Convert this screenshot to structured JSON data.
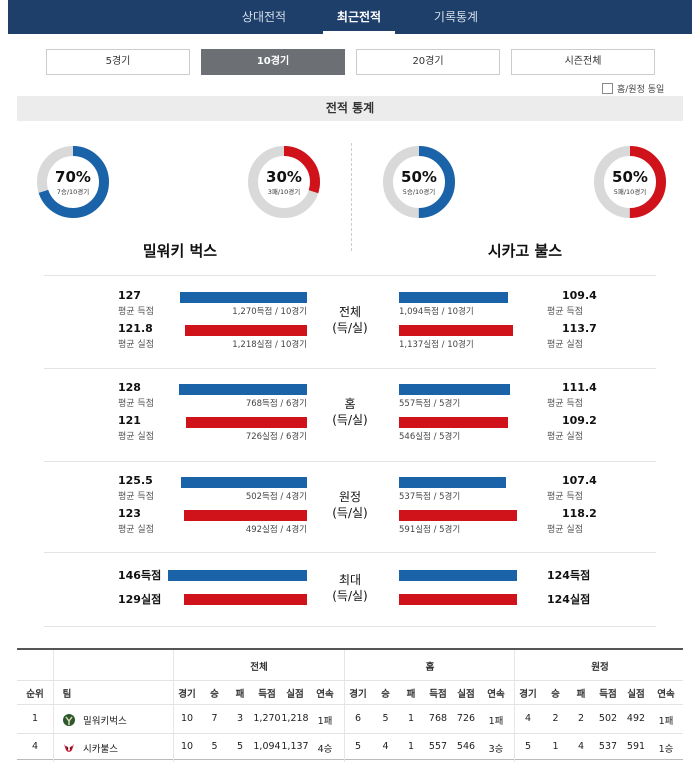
{
  "nav": {
    "tabs": [
      {
        "label": "상대전적",
        "active": false
      },
      {
        "label": "최근전적",
        "active": true
      },
      {
        "label": "기록통계",
        "active": false
      }
    ]
  },
  "ranges": [
    {
      "label": "5경기",
      "active": false
    },
    {
      "label": "10경기",
      "active": true
    },
    {
      "label": "20경기",
      "active": false
    },
    {
      "label": "시즌전체",
      "active": false
    }
  ],
  "same_home_away_label": "홈/원정 동일",
  "section_title": "전적 통계",
  "colors": {
    "home_blue": "#1a63a9",
    "away_red": "#d0121b",
    "nav_bg": "#1f3f6b"
  },
  "teams": {
    "home": {
      "name": "밀워키 벅스",
      "win": {
        "pct_text": "70%",
        "pct": 0.7,
        "sub": "7승/10경기"
      },
      "loss": {
        "pct_text": "30%",
        "pct": 0.3,
        "sub": "3패/10경기"
      }
    },
    "away": {
      "name": "시카고 불스",
      "win": {
        "pct_text": "50%",
        "pct": 0.5,
        "sub": "5승/10경기"
      },
      "loss": {
        "pct_text": "50%",
        "pct": 0.5,
        "sub": "5패/10경기"
      }
    }
  },
  "stat_blocks": [
    {
      "title": "전체",
      "subtitle": "(득/실)",
      "home": {
        "scored": {
          "value": "127",
          "label": "평균 득점",
          "note": "1,270득점 / 10경기",
          "num": 127
        },
        "allowed": {
          "value": "121.8",
          "label": "평균 실점",
          "note": "1,218실점 / 10경기",
          "num": 121.8
        }
      },
      "away": {
        "scored": {
          "value": "109.4",
          "label": "평균 득점",
          "note": "1,094득점 / 10경기",
          "num": 109.4
        },
        "allowed": {
          "value": "113.7",
          "label": "평균 실점",
          "note": "1,137실점 / 10경기",
          "num": 113.7
        }
      }
    },
    {
      "title": "홈",
      "subtitle": "(득/실)",
      "home": {
        "scored": {
          "value": "128",
          "label": "평균 득점",
          "note": "768득점 / 6경기",
          "num": 128
        },
        "allowed": {
          "value": "121",
          "label": "평균 실점",
          "note": "726실점 / 6경기",
          "num": 121
        }
      },
      "away": {
        "scored": {
          "value": "111.4",
          "label": "평균 득점",
          "note": "557득점 / 5경기",
          "num": 111.4
        },
        "allowed": {
          "value": "109.2",
          "label": "평균 실점",
          "note": "546실점 / 5경기",
          "num": 109.2
        }
      }
    },
    {
      "title": "원정",
      "subtitle": "(득/실)",
      "home": {
        "scored": {
          "value": "125.5",
          "label": "평균 득점",
          "note": "502득점 / 4경기",
          "num": 125.5
        },
        "allowed": {
          "value": "123",
          "label": "평균 실점",
          "note": "492실점 / 4경기",
          "num": 123
        }
      },
      "away": {
        "scored": {
          "value": "107.4",
          "label": "평균 득점",
          "note": "537득점 / 5경기",
          "num": 107.4
        },
        "allowed": {
          "value": "118.2",
          "label": "평균 실점",
          "note": "591실점 / 5경기",
          "num": 118.2
        }
      }
    }
  ],
  "max_block": {
    "title": "최대",
    "subtitle": "(득/실)",
    "home": {
      "scored": "146득점",
      "allowed": "129실점",
      "scored_num": 146,
      "allowed_num": 129
    },
    "away": {
      "scored": "124득점",
      "allowed": "124실점",
      "scored_num": 124,
      "allowed_num": 124
    }
  },
  "table": {
    "group_headers": [
      "전체",
      "홈",
      "원정"
    ],
    "col_headers": [
      "순위",
      "팀",
      "경기",
      "승",
      "패",
      "득점",
      "실점",
      "연속",
      "경기",
      "승",
      "패",
      "득점",
      "실점",
      "연속",
      "경기",
      "승",
      "패",
      "득점",
      "실점",
      "연속"
    ],
    "rows": [
      {
        "rank": "1",
        "team": "밀워키벅스",
        "logo": "bucks-logo",
        "cells": [
          "10",
          "7",
          "3",
          "1,270",
          "1,218",
          "1패",
          "6",
          "5",
          "1",
          "768",
          "726",
          "1패",
          "4",
          "2",
          "2",
          "502",
          "492",
          "1패"
        ]
      },
      {
        "rank": "4",
        "team": "시카불스",
        "logo": "bulls-logo",
        "cells": [
          "10",
          "5",
          "5",
          "1,094",
          "1,137",
          "4승",
          "5",
          "4",
          "1",
          "557",
          "546",
          "3승",
          "5",
          "1",
          "4",
          "537",
          "591",
          "1승"
        ]
      }
    ]
  }
}
